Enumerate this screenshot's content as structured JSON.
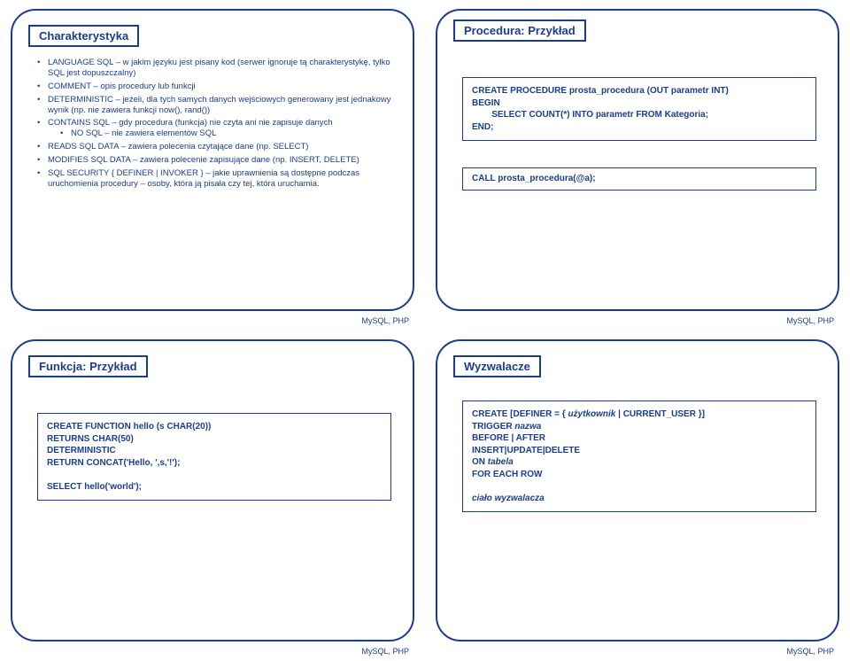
{
  "colors": {
    "frame": "#1a3d8f",
    "text": "#1a3d8f",
    "footer": "#1a3d8f",
    "background": "#ffffff"
  },
  "typography": {
    "title_fontsize": 13,
    "body_fontsize": 9.5,
    "code_fontsize": 10,
    "footer_fontsize": 9,
    "title_weight": "bold",
    "body_weight": "normal"
  },
  "layout": {
    "cols": 2,
    "rows": 2,
    "slide_border_radius": 28
  },
  "footer_text": "MySQL, PHP",
  "slides": {
    "s1": {
      "title": "Charakterystyka",
      "bullets": [
        {
          "text": "LANGUAGE SQL – w jakim języku jest pisany kod (serwer ignoruje tą charakterystykę, tylko SQL jest dopuszczalny)"
        },
        {
          "text": "COMMENT – opis procedury lub funkcji"
        },
        {
          "text": "DETERMINISTIC – jeżeli, dla tych samych danych wejściowych generowany jest jednakowy wynik (np. nie zawiera funkcji now(), rand())"
        },
        {
          "text": "CONTAINS SQL – gdy procedura (funkcja) nie czyta ani nie zapisuje danych",
          "sub": [
            "NO SQL – nie zawiera elementów SQL"
          ]
        },
        {
          "text": "READS SQL DATA – zawiera polecenia czytające dane (np. SELECT)"
        },
        {
          "text": "MODIFIES SQL DATA – zawiera polecenie zapisujące dane (np. INSERT, DELETE)"
        },
        {
          "text": "SQL SECURITY { DEFINER | INVOKER } – jakie uprawnienia są dostępne podczas uruchomienia procedury – osoby, która ją pisała czy tej, która uruchamia."
        }
      ]
    },
    "s2": {
      "title": "Procedura: Przykład",
      "code1_lines": [
        "CREATE PROCEDURE prosta_procedura (OUT parametr INT)",
        "BEGIN",
        "        SELECT COUNT(*) INTO parametr FROM Kategoria;",
        "END;"
      ],
      "code2": "CALL prosta_procedura(@a);"
    },
    "s3": {
      "title": "Funkcja: Przykład",
      "code_lines": [
        "CREATE FUNCTION hello (s CHAR(20))",
        "RETURNS CHAR(50)",
        "DETERMINISTIC",
        "RETURN CONCAT('Hello, ',s,'!');",
        "",
        "SELECT hello('world');"
      ]
    },
    "s4": {
      "title": "Wyzwalacze",
      "code_lines": [
        {
          "t": "CREATE [DEFINER = { ",
          "i": false
        },
        {
          "t": "użytkownik",
          "i": true
        },
        {
          "t": " | CURRENT_USER }]",
          "i": false,
          "br": true
        },
        {
          "t": "TRIGGER ",
          "i": false
        },
        {
          "t": "nazwa",
          "i": true,
          "br": true
        },
        {
          "t": "BEFORE | AFTER",
          "i": false,
          "br": true
        },
        {
          "t": "INSERT|UPDATE|DELETE",
          "i": false,
          "br": true
        },
        {
          "t": "ON ",
          "i": false
        },
        {
          "t": "tabela",
          "i": true,
          "br": true
        },
        {
          "t": "FOR EACH ROW",
          "i": false,
          "br": true
        },
        {
          "t": "",
          "br": true
        },
        {
          "t": "ciało wyzwalacza",
          "i": true
        }
      ]
    }
  }
}
